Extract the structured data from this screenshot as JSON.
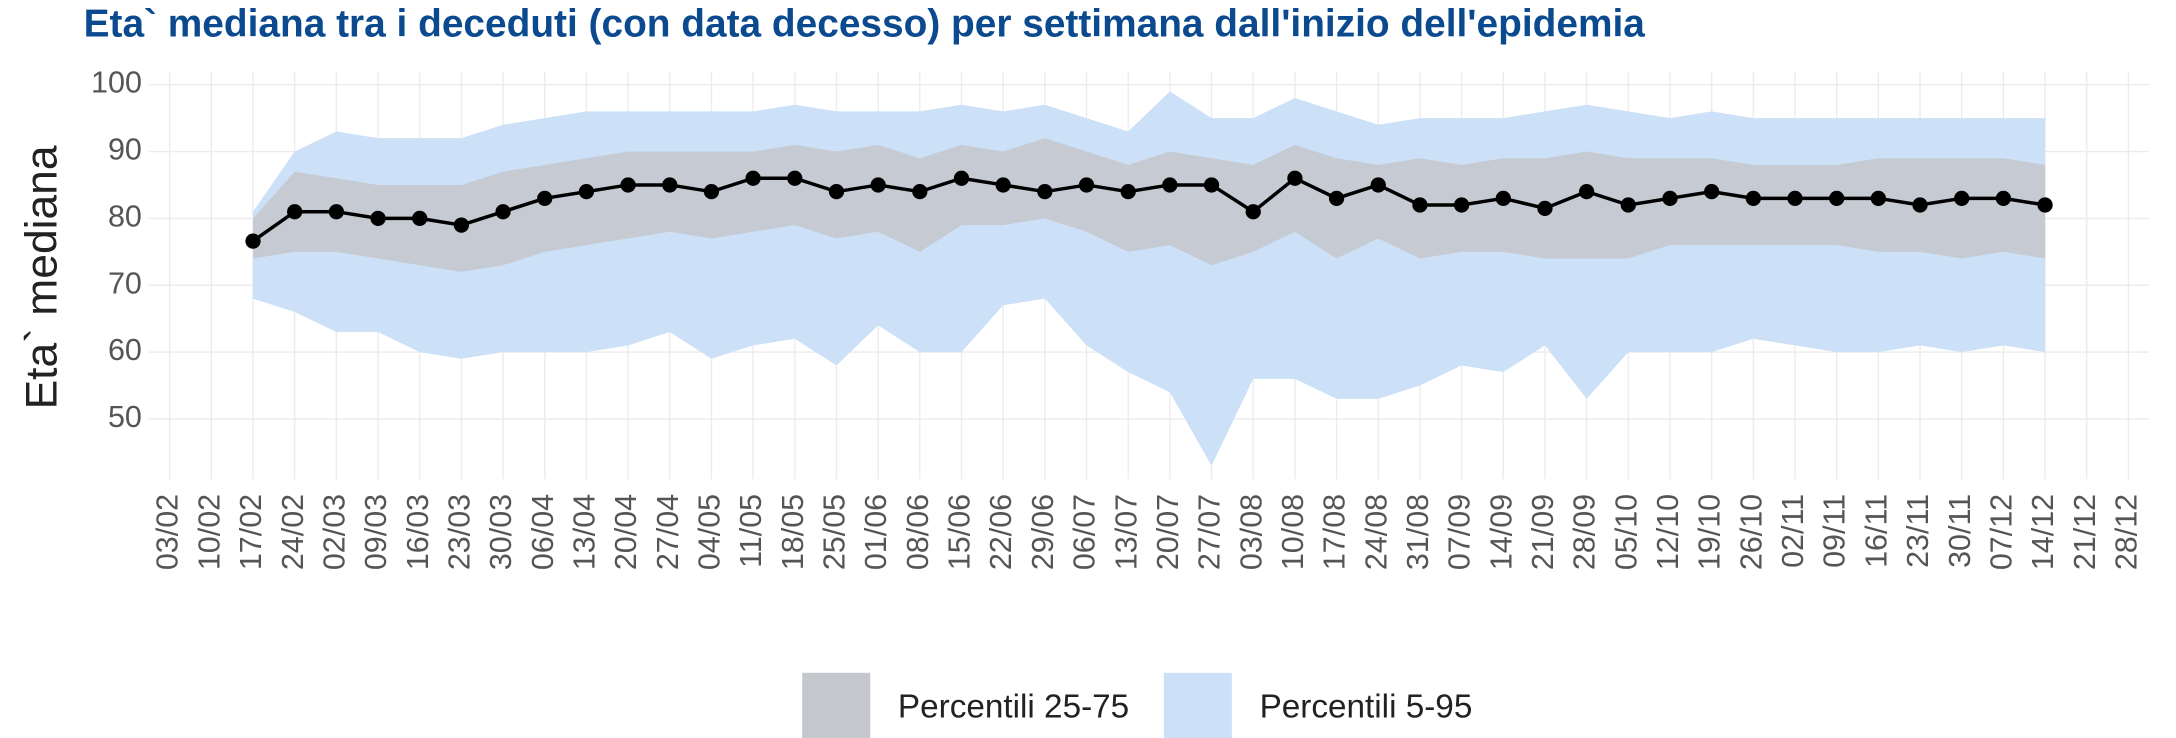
{
  "chart_data": {
    "type": "line",
    "title": "Eta` mediana tra i deceduti (con data decesso) per settimana dall'inizio dell'epidemia",
    "y_label": "Eta` mediana",
    "categories": [
      "03/02",
      "10/02",
      "17/02",
      "24/02",
      "02/03",
      "09/03",
      "16/03",
      "23/03",
      "30/03",
      "06/04",
      "13/04",
      "20/04",
      "27/04",
      "04/05",
      "11/05",
      "18/05",
      "25/05",
      "01/06",
      "08/06",
      "15/06",
      "22/06",
      "29/06",
      "06/07",
      "13/07",
      "20/07",
      "27/07",
      "03/08",
      "10/08",
      "17/08",
      "24/08",
      "31/08",
      "07/09",
      "14/09",
      "21/09",
      "28/09",
      "05/10",
      "12/10",
      "19/10",
      "26/10",
      "02/11",
      "09/11",
      "16/11",
      "23/11",
      "30/11",
      "07/12",
      "14/12",
      "21/12",
      "28/12"
    ],
    "median": {
      "color": "#000000",
      "values": [
        null,
        null,
        76.6,
        81,
        81,
        80,
        80,
        79,
        81,
        83,
        84,
        85,
        85,
        84,
        86,
        86,
        84,
        85,
        84,
        86,
        85,
        84,
        85,
        84,
        85,
        85,
        81,
        86,
        83,
        85,
        82,
        82,
        83,
        81.5,
        84,
        82,
        83,
        84,
        83,
        83,
        83,
        83,
        82,
        83,
        83,
        82,
        null,
        null
      ]
    },
    "bands": [
      {
        "name": "Percentili 5-95",
        "color": "#cce1f7",
        "lower": [
          null,
          null,
          68,
          66,
          63,
          63,
          60,
          59,
          60,
          60,
          60,
          61,
          63,
          59,
          61,
          62,
          58,
          64,
          60,
          60,
          67,
          68,
          61,
          57,
          54,
          43,
          56,
          56,
          53,
          53,
          55,
          58,
          57,
          61,
          53,
          60,
          60,
          60,
          62,
          61,
          60,
          60,
          61,
          60,
          61,
          60,
          null,
          null
        ],
        "upper": [
          null,
          null,
          81,
          90,
          93,
          92,
          92,
          92,
          94,
          95,
          96,
          96,
          96,
          96,
          96,
          97,
          96,
          96,
          96,
          97,
          96,
          97,
          95,
          93,
          99,
          95,
          95,
          98,
          96,
          94,
          95,
          95,
          95,
          96,
          97,
          96,
          95,
          96,
          95,
          95,
          95,
          95,
          95,
          95,
          95,
          95,
          null,
          null
        ]
      },
      {
        "name": "Percentili 25-75",
        "color": "#c4c7cc",
        "lower": [
          null,
          null,
          74,
          75,
          75,
          74,
          73,
          72,
          73,
          75,
          76,
          77,
          78,
          77,
          78,
          79,
          77,
          78,
          75,
          79,
          79,
          80,
          78,
          75,
          76,
          73,
          75,
          78,
          74,
          77,
          74,
          75,
          75,
          74,
          74,
          74,
          76,
          76,
          76,
          76,
          76,
          75,
          75,
          74,
          75,
          74,
          null,
          null
        ],
        "upper": [
          null,
          null,
          80,
          87,
          86,
          85,
          85,
          85,
          87,
          88,
          89,
          90,
          90,
          90,
          90,
          91,
          90,
          91,
          89,
          91,
          90,
          92,
          90,
          88,
          90,
          89,
          88,
          91,
          89,
          88,
          89,
          88,
          89,
          89,
          90,
          89,
          89,
          89,
          88,
          88,
          88,
          89,
          89,
          89,
          89,
          88,
          null,
          null
        ]
      }
    ],
    "legend_order": [
      1,
      0
    ],
    "ylim": [
      41,
      102
    ],
    "yticks": [
      50,
      60,
      70,
      80,
      90,
      100
    ],
    "grid": true
  }
}
